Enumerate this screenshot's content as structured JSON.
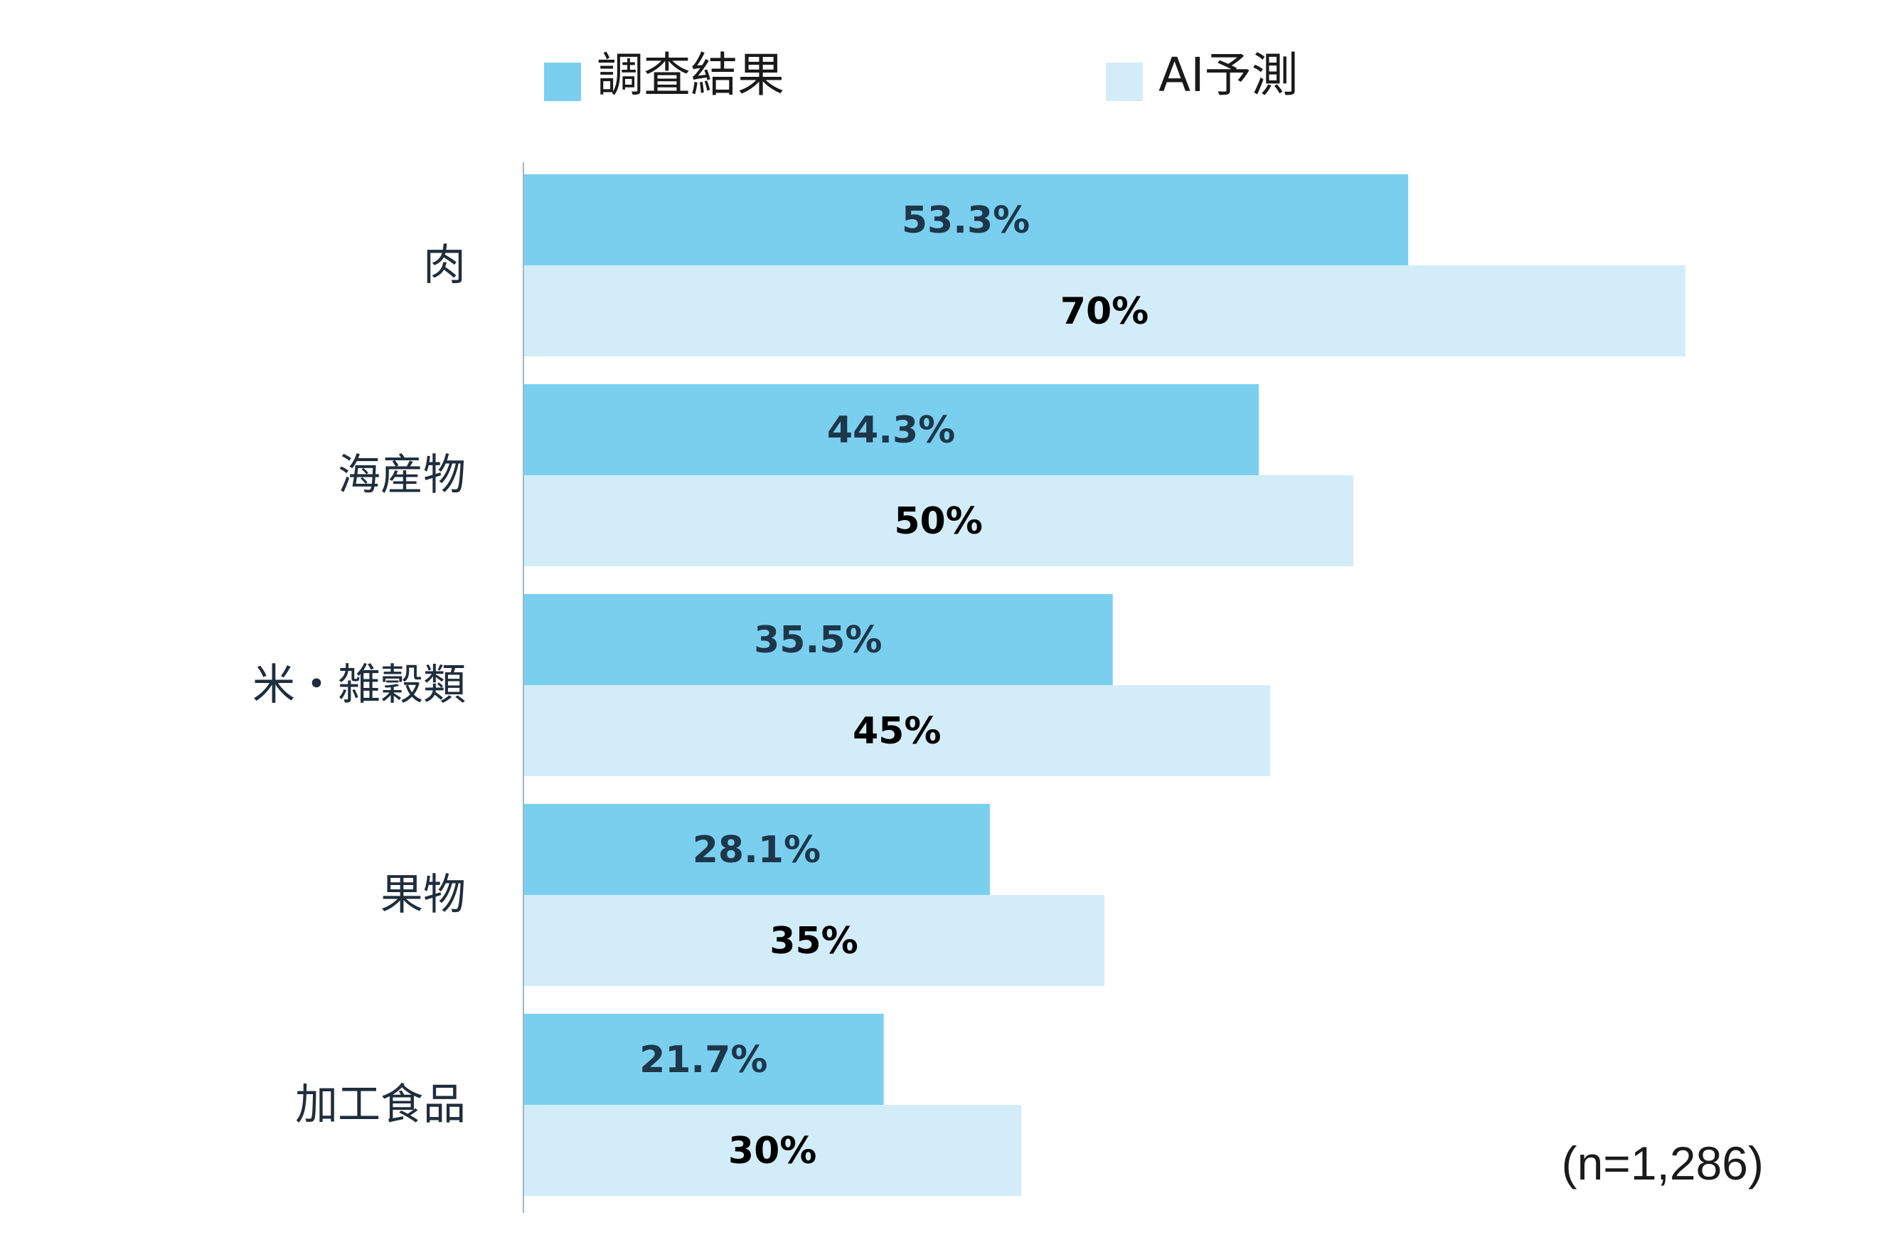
{
  "chart_data": {
    "type": "bar",
    "orientation": "horizontal",
    "categories": [
      "肉",
      "海産物",
      "米・雑穀類",
      "果物",
      "加工食品"
    ],
    "series": [
      {
        "name": "調査結果",
        "values": [
          53.3,
          44.3,
          35.5,
          28.1,
          21.7
        ],
        "labels": [
          "53.3%",
          "44.3%",
          "35.5%",
          "28.1%",
          "21.7%"
        ],
        "color": "#7acfef",
        "label_color": "#1d3649"
      },
      {
        "name": "AI予測",
        "values": [
          70,
          50,
          45,
          35,
          30
        ],
        "labels": [
          "70%",
          "50%",
          "45%",
          "35%",
          "30%"
        ],
        "color": "#d3edf8",
        "label_color": "#000000"
      }
    ],
    "xlim": [
      0,
      70
    ],
    "legend_position": "top",
    "note": "(n=1,286)",
    "axis_color": "#9bb7d0",
    "grid": false
  }
}
